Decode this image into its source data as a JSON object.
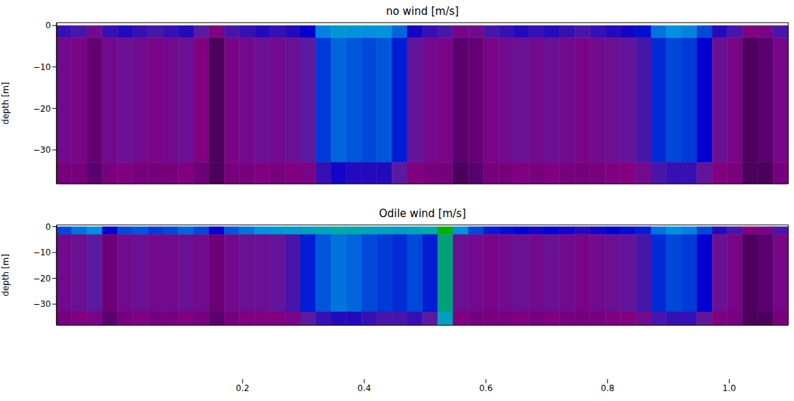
{
  "chart_data": [
    {
      "type": "heatmap",
      "title": "no wind [m/s]",
      "ylabel": "depth [m]",
      "tick_labels": "y",
      "xlim": [
        0,
        48
      ],
      "ylim": [
        -38.2,
        0.7
      ],
      "yticks": [
        {
          "value": 0,
          "label": "0"
        },
        {
          "value": -10,
          "label": "−10"
        },
        {
          "value": -20,
          "label": "−20"
        },
        {
          "value": -30,
          "label": "−30"
        }
      ],
      "depth_edges": [
        0,
        -3,
        -33,
        -38.2
      ],
      "values": [
        [
          0.17,
          0.16,
          0.12,
          0.17,
          0.18,
          0.17,
          0.16,
          0.17,
          0.18,
          0.15,
          0.1,
          0.16,
          0.17,
          0.18,
          0.17,
          0.18,
          0.2,
          0.29,
          0.32,
          0.31,
          0.3,
          0.31,
          0.27,
          0.19,
          0.17,
          0.16,
          0.11,
          0.12,
          0.16,
          0.17,
          0.18,
          0.17,
          0.18,
          0.17,
          0.16,
          0.17,
          0.18,
          0.19,
          0.21,
          0.28,
          0.3,
          0.29,
          0.25,
          0.18,
          0.16,
          0.1,
          0.11,
          0.16
        ],
        [
          0.12,
          0.11,
          0.07,
          0.12,
          0.13,
          0.12,
          0.11,
          0.12,
          0.13,
          0.1,
          0.05,
          0.11,
          0.12,
          0.13,
          0.12,
          0.13,
          0.15,
          0.24,
          0.27,
          0.26,
          0.25,
          0.26,
          0.22,
          0.14,
          0.12,
          0.11,
          0.06,
          0.07,
          0.11,
          0.12,
          0.13,
          0.12,
          0.13,
          0.12,
          0.11,
          0.12,
          0.13,
          0.14,
          0.16,
          0.23,
          0.25,
          0.24,
          0.2,
          0.13,
          0.11,
          0.05,
          0.06,
          0.11
        ],
        [
          0.09,
          0.09,
          0.06,
          0.09,
          0.1,
          0.09,
          0.09,
          0.09,
          0.1,
          0.08,
          0.05,
          0.09,
          0.09,
          0.1,
          0.09,
          0.1,
          0.11,
          0.17,
          0.19,
          0.18,
          0.18,
          0.18,
          0.15,
          0.1,
          0.09,
          0.09,
          0.05,
          0.06,
          0.09,
          0.09,
          0.1,
          0.09,
          0.1,
          0.09,
          0.09,
          0.09,
          0.1,
          0.1,
          0.12,
          0.16,
          0.17,
          0.17,
          0.14,
          0.1,
          0.09,
          0.05,
          0.05,
          0.09
        ]
      ]
    },
    {
      "type": "heatmap",
      "title": "Odile wind [m/s]",
      "ylabel": "depth [m]",
      "tick_labels": "y",
      "xlim": [
        0,
        48
      ],
      "ylim": [
        -38.2,
        0.7
      ],
      "yticks": [
        {
          "value": 0,
          "label": "0"
        },
        {
          "value": -10,
          "label": "−10"
        },
        {
          "value": -20,
          "label": "−20"
        },
        {
          "value": -30,
          "label": "−30"
        }
      ],
      "depth_edges": [
        0,
        -3,
        -33,
        -38.2
      ],
      "values": [
        [
          0.25,
          0.28,
          0.3,
          0.2,
          0.25,
          0.26,
          0.24,
          0.25,
          0.27,
          0.25,
          0.2,
          0.26,
          0.28,
          0.3,
          0.32,
          0.33,
          0.35,
          0.36,
          0.38,
          0.37,
          0.36,
          0.35,
          0.34,
          0.36,
          0.38,
          0.5,
          0.3,
          0.25,
          0.22,
          0.21,
          0.2,
          0.19,
          0.2,
          0.19,
          0.18,
          0.19,
          0.2,
          0.21,
          0.22,
          0.28,
          0.3,
          0.29,
          0.25,
          0.18,
          0.16,
          0.1,
          0.11,
          0.16
        ],
        [
          0.12,
          0.13,
          0.15,
          0.08,
          0.12,
          0.13,
          0.12,
          0.12,
          0.13,
          0.12,
          0.08,
          0.12,
          0.13,
          0.13,
          0.14,
          0.16,
          0.22,
          0.26,
          0.28,
          0.27,
          0.25,
          0.24,
          0.23,
          0.25,
          0.22,
          0.4,
          0.13,
          0.12,
          0.11,
          0.12,
          0.13,
          0.12,
          0.13,
          0.12,
          0.11,
          0.12,
          0.13,
          0.14,
          0.16,
          0.23,
          0.25,
          0.24,
          0.2,
          0.13,
          0.11,
          0.05,
          0.06,
          0.11
        ],
        [
          0.09,
          0.1,
          0.11,
          0.06,
          0.09,
          0.1,
          0.09,
          0.09,
          0.1,
          0.09,
          0.06,
          0.09,
          0.1,
          0.1,
          0.1,
          0.11,
          0.15,
          0.17,
          0.18,
          0.18,
          0.17,
          0.16,
          0.16,
          0.17,
          0.15,
          0.35,
          0.1,
          0.09,
          0.09,
          0.09,
          0.1,
          0.09,
          0.1,
          0.09,
          0.09,
          0.09,
          0.1,
          0.1,
          0.12,
          0.16,
          0.17,
          0.17,
          0.14,
          0.1,
          0.09,
          0.05,
          0.05,
          0.09
        ]
      ]
    }
  ],
  "colorbar": {
    "lim": [
      0,
      1.01
    ],
    "ticks": [
      0.2,
      0.4,
      0.6,
      0.8,
      {
        "value": 1,
        "label": "1.0"
      }
    ]
  }
}
